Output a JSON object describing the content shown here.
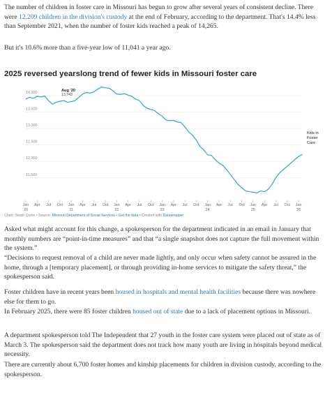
{
  "intro": [
    [
      "The number of children in foster care in Missouri has begun to grow after several years of consistent decline. There were ",
      {
        "text": "12,209 children in the division's custody",
        "link": true
      },
      " at the end of February, according to the department. That's 14.4% less than September 2021, when the number of foster kids reached a peak of 14,265."
    ],
    [
      "But it's 10.6% more than a five-year low of 11,041 a year ago."
    ]
  ],
  "chart_data": {
    "type": "line",
    "title": "2025 reversed yearslong trend of fewer kids in Missouri foster care",
    "xtick_labels": [
      "Jan 20",
      "Apr",
      "Jul",
      "Oct",
      "Jan 21",
      "Apr",
      "Jul",
      "Oct",
      "Jan 22",
      "Apr",
      "Jul",
      "Oct",
      "Jan 23",
      "Apr",
      "Jul",
      "Oct",
      "Jan 24",
      "Apr",
      "Jul",
      "Oct",
      "Jan 25",
      "Apr",
      "Jul",
      "Oct",
      "Jan 26"
    ],
    "series": [
      {
        "name": "Kids in Foster Care",
        "color": "#2ea3d8",
        "values": [
          13900,
          13950,
          13920,
          13980,
          13960,
          13990,
          13850,
          13743,
          13800,
          13830,
          13850,
          13800,
          13820,
          13850,
          13950,
          14050,
          14100,
          14080,
          14120,
          14200,
          14265,
          14240,
          14230,
          14150,
          14050,
          14040,
          14060,
          14020,
          13980,
          13900,
          13850,
          13700,
          13620,
          13580,
          13550,
          13450,
          13380,
          13260,
          13240,
          13250,
          13200,
          13180,
          13050,
          12900,
          12800,
          12650,
          12450,
          12350,
          12200,
          12180,
          12050,
          11950,
          11880,
          11750,
          11600,
          11450,
          11300,
          11200,
          11100,
          11080,
          11060,
          11041,
          11100,
          11080,
          11150,
          11300,
          11500,
          11650,
          11750,
          11850,
          11950,
          12050,
          12150,
          12209
        ]
      }
    ],
    "ylim": [
      10900,
      14300
    ],
    "yticks": [
      {
        "value": 14000,
        "label": "14,000"
      },
      {
        "value": 13500,
        "label": "13,500"
      },
      {
        "value": 13000,
        "label": "13,000"
      },
      {
        "value": 12500,
        "label": "12,500"
      },
      {
        "value": 12000,
        "label": "12,000"
      },
      {
        "value": 11500,
        "label": "11,500"
      }
    ],
    "grid": true,
    "annotations": [
      "Aug '20",
      "13,743"
    ],
    "source": [
      "Chart: Steph Quinn • Source: ",
      {
        "text": "Missouri Department of Social Services",
        "link": true
      },
      " • ",
      {
        "text": "Get the data",
        "link": true
      },
      " • Created with ",
      {
        "text": "Datawrapper",
        "link": true
      }
    ]
  },
  "body": [
    [
      "Asked what might account for this change, a spokesperson for the department indicated in an email in January that monthly numbers are “point-in-time measures” and that “a single snapshot does not capture the full movement within the system.”"
    ],
    [
      "“Decisions to request removal of a child are never made lightly, and only occur when safety cannot be assured in the home, through a [temporary placement], or through providing in-home services to mitigate the safety threat,” the spokesperson said."
    ],
    [
      "Foster children have in recent years been ",
      {
        "text": "housed in hospitals and mental health facilities",
        "link": true
      },
      " because there was nowhere else for them to go."
    ],
    [
      "In February 2025, there were 85 foster children ",
      {
        "text": "housed out of state",
        "link": true
      },
      " due to a lack of placement options in Missouri."
    ],
    [
      "A department spokesperson told The Independent that 27 youth in the foster care system were placed out of state as of March 3. The spokesperson said the department does not track how many youth are living in hospitals beyond medical necessity."
    ],
    [
      "There are currently about 6,700 foster homes and kinship placements for children in division custody, according to the spokesperson."
    ]
  ]
}
